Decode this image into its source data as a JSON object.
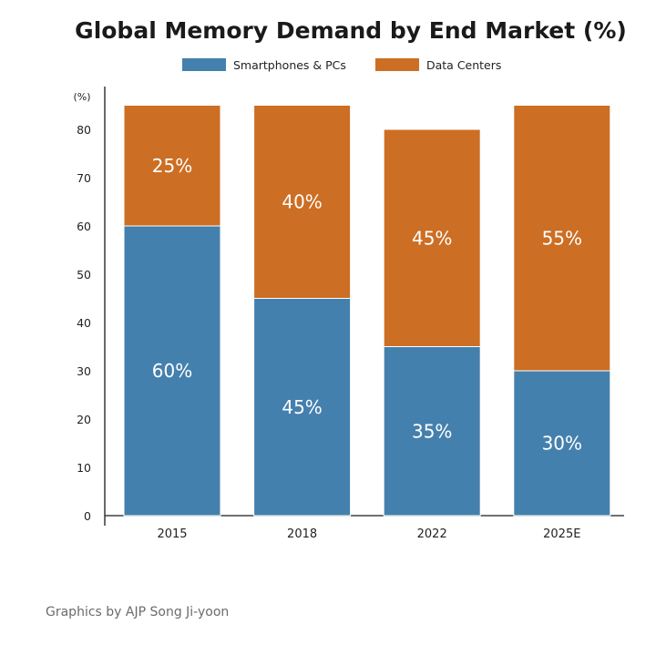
{
  "chart_data": {
    "type": "bar",
    "stacked": true,
    "title": "Global Memory Demand by End Market (%)",
    "ylabel": "(%)",
    "xlabel": "",
    "ylim": [
      0,
      85
    ],
    "yticks": [
      0,
      10,
      20,
      30,
      40,
      50,
      60,
      70,
      80
    ],
    "grid": false,
    "legend_position": "top-center",
    "categories": [
      "2015",
      "2018",
      "2022",
      "2025E"
    ],
    "series": [
      {
        "name": "Smartphones & PCs",
        "color": "#4480ad",
        "values": [
          60,
          45,
          35,
          30
        ],
        "labels": [
          "60%",
          "45%",
          "35%",
          "30%"
        ]
      },
      {
        "name": "Data Centers",
        "color": "#cc6e23",
        "values": [
          25,
          40,
          45,
          55
        ],
        "labels": [
          "25%",
          "40%",
          "45%",
          "55%"
        ]
      }
    ]
  },
  "credit": "Graphics by AJP Song Ji-yoon"
}
